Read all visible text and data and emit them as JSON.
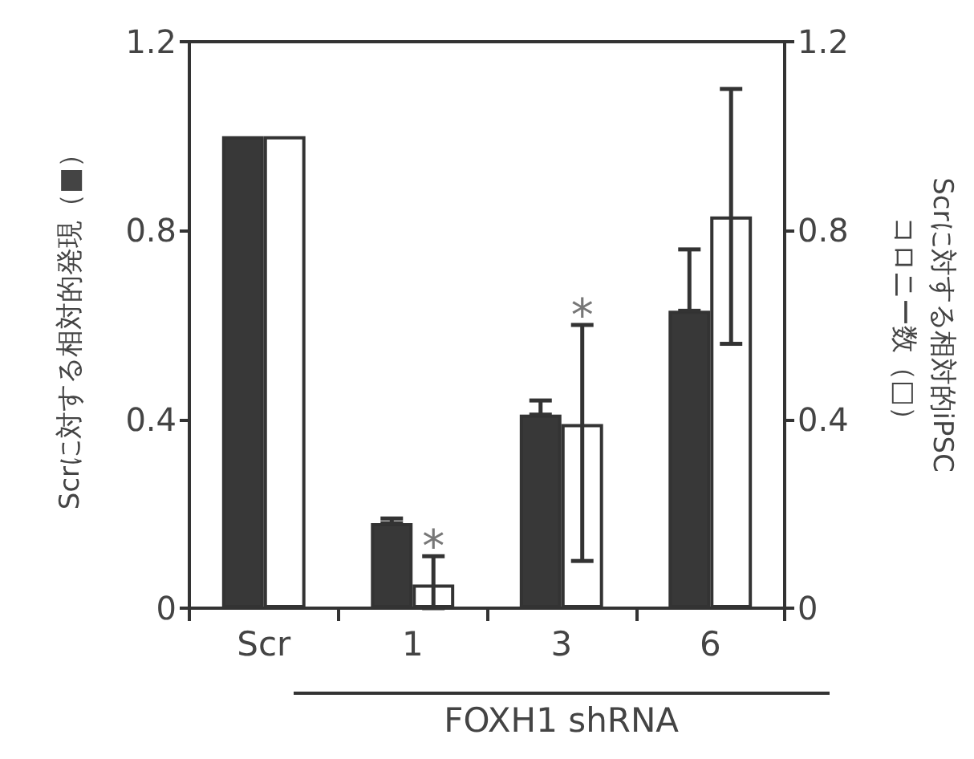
{
  "chart_data": {
    "type": "bar",
    "categories": [
      "Scr",
      "1",
      "3",
      "6"
    ],
    "xlabel": "FOXH1 shRNA",
    "ylabel": "Scrに対する相対的発現（■）",
    "y2label": "Scrに対する相対的iPSC\nコロニー数（□）",
    "series": [
      {
        "color": "#383838",
        "values": [
          1.0,
          0.18,
          0.41,
          0.63
        ],
        "errors": [
          null,
          [
            0.18,
            0.19
          ],
          [
            0.41,
            0.44
          ],
          [
            0.63,
            0.76
          ]
        ]
      },
      {
        "color": "#ffffff",
        "values": [
          1.0,
          0.05,
          0.39,
          0.83
        ],
        "errors": [
          null,
          [
            0,
            0.11
          ],
          [
            0.1,
            0.6
          ],
          [
            0.56,
            1.1
          ]
        ]
      }
    ],
    "ylim": [
      0,
      1.2
    ],
    "yticks": [
      0,
      0.4,
      0.8,
      1.2
    ],
    "y2lim": [
      0,
      1.2
    ],
    "y2ticks": [
      0,
      0.4,
      0.8,
      1.2
    ],
    "annotations": [
      {
        "text": "*",
        "x": "1",
        "y": 0.05
      },
      {
        "text": "*",
        "x": "3",
        "y": 0.39
      }
    ],
    "grid": false
  }
}
